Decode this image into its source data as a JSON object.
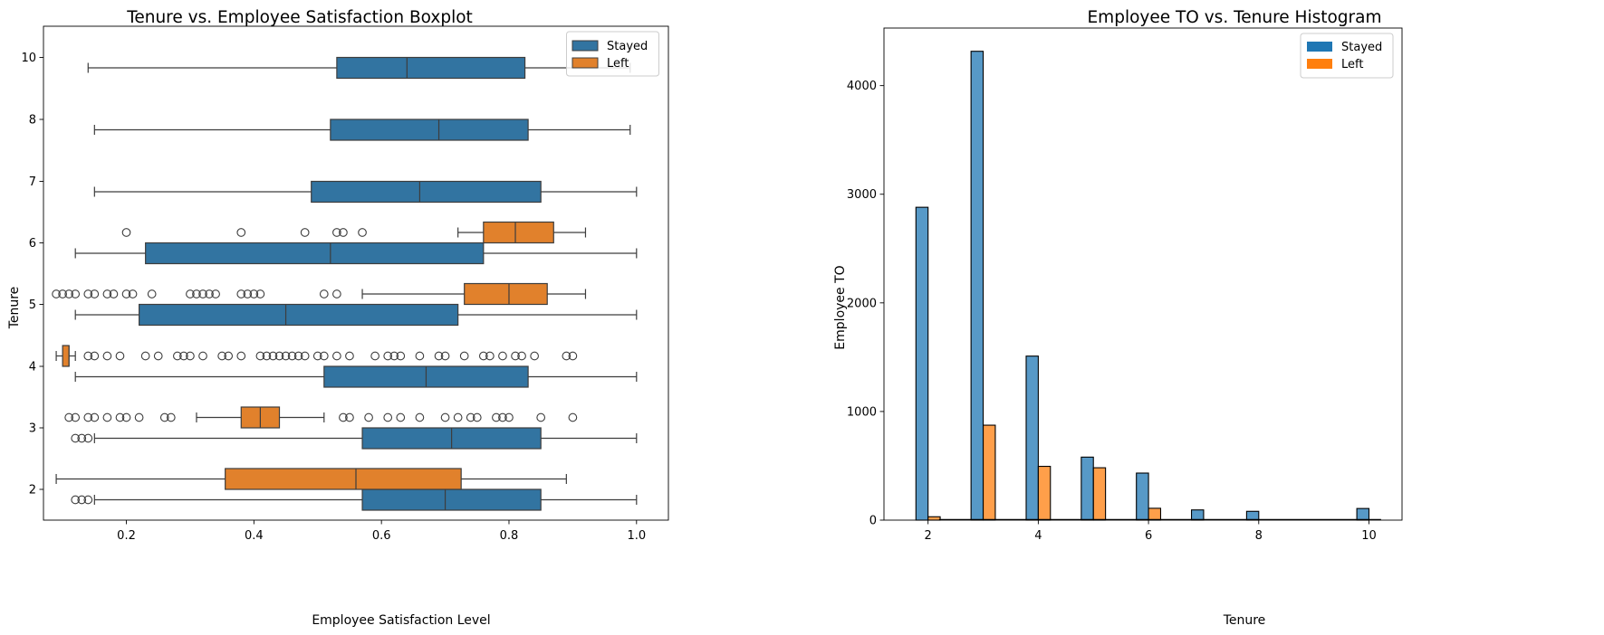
{
  "chart_data": [
    {
      "type": "boxplot",
      "orientation": "horizontal",
      "title": "Tenure vs. Employee Satisfaction Boxplot",
      "xlabel": "Employee Satisfaction Level",
      "ylabel": "Tenure",
      "xlim": [
        0.07,
        1.05
      ],
      "xticks": [
        "0.2",
        "0.4",
        "0.6",
        "0.8",
        "1.0"
      ],
      "categories": [
        "2",
        "3",
        "4",
        "5",
        "6",
        "7",
        "8",
        "10"
      ],
      "legend": {
        "placement": "upper right",
        "entries": [
          "Stayed",
          "Left"
        ]
      },
      "colors": {
        "Stayed": "#3274a1",
        "Left": "#e1812c"
      },
      "series": [
        {
          "name": "Stayed",
          "boxes": [
            {
              "category": "2",
              "whislo": 0.15,
              "q1": 0.57,
              "med": 0.7,
              "q3": 0.85,
              "whishi": 1.0,
              "fliers": [
                0.12,
                0.13,
                0.14
              ]
            },
            {
              "category": "3",
              "whislo": 0.15,
              "q1": 0.57,
              "med": 0.71,
              "q3": 0.85,
              "whishi": 1.0,
              "fliers": [
                0.12,
                0.13,
                0.14
              ]
            },
            {
              "category": "4",
              "whislo": 0.12,
              "q1": 0.51,
              "med": 0.67,
              "q3": 0.83,
              "whishi": 1.0,
              "fliers": []
            },
            {
              "category": "5",
              "whislo": 0.12,
              "q1": 0.22,
              "med": 0.45,
              "q3": 0.72,
              "whishi": 1.0,
              "fliers": []
            },
            {
              "category": "6",
              "whislo": 0.12,
              "q1": 0.23,
              "med": 0.52,
              "q3": 0.76,
              "whishi": 1.0,
              "fliers": []
            },
            {
              "category": "7",
              "whislo": 0.15,
              "q1": 0.49,
              "med": 0.66,
              "q3": 0.85,
              "whishi": 1.0,
              "fliers": []
            },
            {
              "category": "8",
              "whislo": 0.15,
              "q1": 0.52,
              "med": 0.69,
              "q3": 0.83,
              "whishi": 0.99,
              "fliers": []
            },
            {
              "category": "10",
              "whislo": 0.14,
              "q1": 0.53,
              "med": 0.64,
              "q3": 0.825,
              "whishi": 0.99,
              "fliers": []
            }
          ]
        },
        {
          "name": "Left",
          "boxes": [
            {
              "category": "2",
              "whislo": 0.09,
              "q1": 0.355,
              "med": 0.56,
              "q3": 0.725,
              "whishi": 0.89,
              "fliers": []
            },
            {
              "category": "3",
              "whislo": 0.31,
              "q1": 0.38,
              "med": 0.41,
              "q3": 0.44,
              "whishi": 0.51,
              "fliers": [
                0.11,
                0.12,
                0.14,
                0.15,
                0.17,
                0.19,
                0.2,
                0.22,
                0.26,
                0.27,
                0.54,
                0.55,
                0.58,
                0.61,
                0.63,
                0.66,
                0.7,
                0.72,
                0.74,
                0.75,
                0.78,
                0.79,
                0.8,
                0.85,
                0.9
              ]
            },
            {
              "category": "4",
              "whislo": 0.09,
              "q1": 0.1,
              "med": 0.11,
              "q3": 0.11,
              "whishi": 0.12,
              "fliers": [
                0.14,
                0.15,
                0.17,
                0.19,
                0.23,
                0.25,
                0.28,
                0.29,
                0.3,
                0.32,
                0.35,
                0.36,
                0.38,
                0.41,
                0.42,
                0.43,
                0.44,
                0.45,
                0.46,
                0.47,
                0.48,
                0.5,
                0.51,
                0.53,
                0.55,
                0.59,
                0.61,
                0.62,
                0.63,
                0.66,
                0.69,
                0.7,
                0.73,
                0.76,
                0.77,
                0.79,
                0.81,
                0.82,
                0.84,
                0.89,
                0.9
              ]
            },
            {
              "category": "5",
              "whislo": 0.57,
              "q1": 0.73,
              "med": 0.8,
              "q3": 0.86,
              "whishi": 0.92,
              "fliers": [
                0.09,
                0.1,
                0.11,
                0.12,
                0.14,
                0.15,
                0.17,
                0.18,
                0.2,
                0.21,
                0.24,
                0.3,
                0.31,
                0.32,
                0.33,
                0.34,
                0.38,
                0.39,
                0.4,
                0.41,
                0.51,
                0.53
              ]
            },
            {
              "category": "6",
              "whislo": 0.72,
              "q1": 0.76,
              "med": 0.81,
              "q3": 0.87,
              "whishi": 0.92,
              "fliers": [
                0.2,
                0.38,
                0.48,
                0.53,
                0.54,
                0.57
              ]
            }
          ]
        }
      ]
    },
    {
      "type": "bar",
      "title": "Employee TO vs. Tenure Histogram",
      "xlabel": "Tenure",
      "ylabel": "Employee TO",
      "xlim": [
        1.2,
        10.6
      ],
      "ylim": [
        0,
        4530
      ],
      "xticks": [
        "2",
        "4",
        "6",
        "8",
        "10"
      ],
      "yticks": [
        "0",
        "1000",
        "2000",
        "3000",
        "4000"
      ],
      "legend": {
        "placement": "upper right",
        "entries": [
          "Stayed",
          "Left"
        ]
      },
      "colors": {
        "Stayed": "#1f77b4",
        "Left": "#ff7f0e"
      },
      "x": [
        2,
        3,
        4,
        5,
        6,
        7,
        8,
        10
      ],
      "series": [
        {
          "name": "Stayed",
          "values": [
            2880,
            4316,
            1510,
            580,
            433,
            94,
            81,
            107
          ]
        },
        {
          "name": "Left",
          "values": [
            31,
            874,
            495,
            482,
            109,
            0,
            0,
            0
          ]
        }
      ]
    }
  ]
}
